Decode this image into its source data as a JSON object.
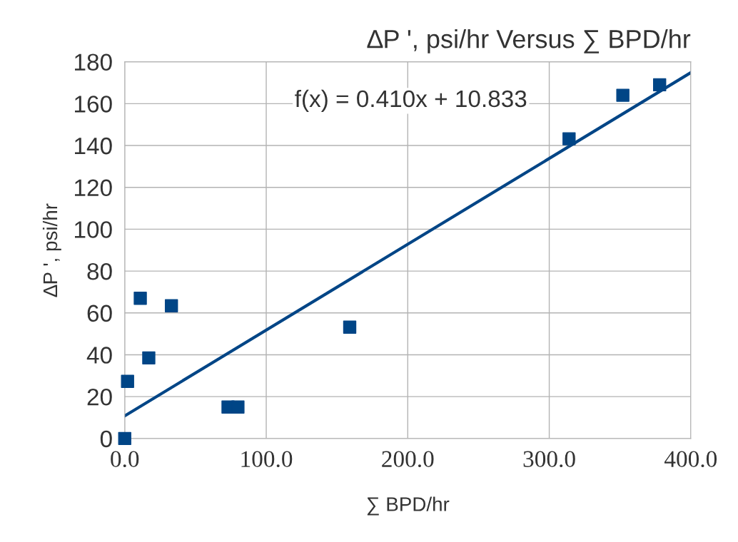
{
  "chart_data": {
    "type": "scatter",
    "title": "∆P ', psi/hr Versus ∑ BPD/hr",
    "xlabel": "∑ BPD/hr",
    "ylabel": "∆P ', psi/hr",
    "annotations": [
      "f(x) = 0.410x + 10.833"
    ],
    "series": [
      {
        "color": "#004586",
        "x": [
          0,
          2,
          11,
          17,
          33,
          73,
          80,
          159,
          314,
          352,
          378
        ],
        "values": [
          0,
          27.3,
          67,
          38.5,
          63.4,
          15,
          15,
          53.2,
          143.2,
          164,
          169
        ],
        "marker": "square"
      },
      {
        "type": "line",
        "color": "#004586",
        "x": [
          0,
          400
        ],
        "values": [
          10.8,
          174.8
        ],
        "marker": "none"
      }
    ],
    "xlim": [
      0,
      400
    ],
    "xticks": [
      {
        "value": 0,
        "label": "0.0"
      },
      {
        "value": 100,
        "label": "100.0"
      },
      {
        "value": 200,
        "label": "200.0"
      },
      {
        "value": 300,
        "label": "300.0"
      },
      {
        "value": 400,
        "label": "400.0"
      }
    ],
    "ylim": [
      0,
      180
    ],
    "yticks": [
      0,
      20,
      40,
      60,
      80,
      100,
      120,
      140,
      160,
      180
    ],
    "grid": true,
    "legend": false
  }
}
